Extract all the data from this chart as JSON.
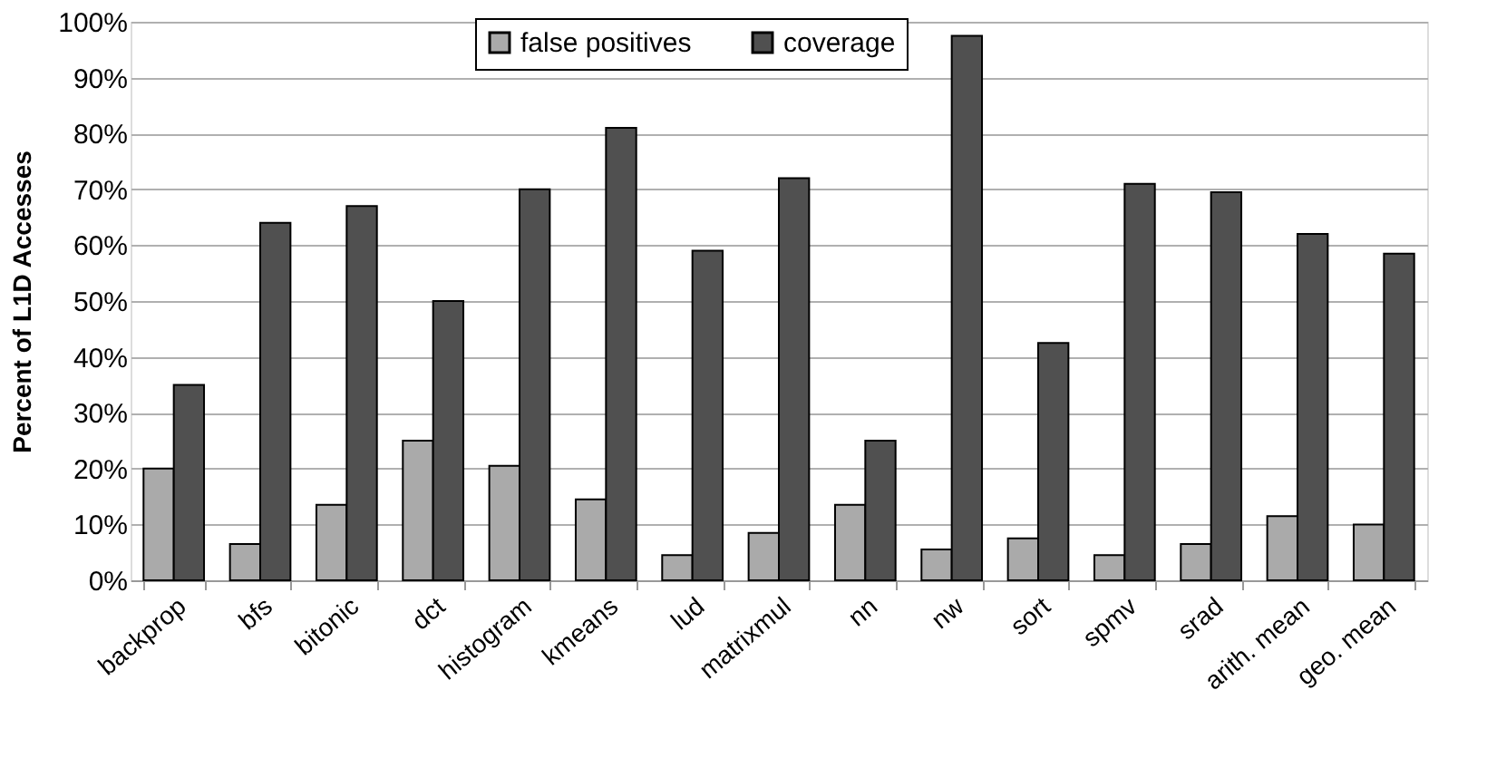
{
  "chart_data": {
    "type": "bar",
    "ylabel": "Percent of L1D Accesses",
    "categories": [
      "backprop",
      "bfs",
      "bitonic",
      "dct",
      "histogram",
      "kmeans",
      "lud",
      "matrixmul",
      "nn",
      "nw",
      "sort",
      "spmv",
      "srad",
      "arith. mean",
      "geo. mean"
    ],
    "series": [
      {
        "name": "false positives",
        "color": "#aaaaaa",
        "values": [
          20,
          6.5,
          13.5,
          25,
          20.5,
          14.5,
          4.5,
          8.5,
          13.5,
          5.5,
          7.5,
          4.5,
          6.5,
          11.5,
          10
        ]
      },
      {
        "name": "coverage",
        "color": "#505050",
        "values": [
          35,
          64,
          67,
          50,
          70,
          81,
          59,
          72,
          25,
          97.5,
          42.5,
          71,
          69.5,
          62,
          58.5
        ]
      }
    ],
    "ylim": [
      0,
      100
    ],
    "yticks": [
      {
        "value": 0,
        "label": "0%"
      },
      {
        "value": 10,
        "label": "10%"
      },
      {
        "value": 20,
        "label": "20%"
      },
      {
        "value": 30,
        "label": "30%"
      },
      {
        "value": 40,
        "label": "40%"
      },
      {
        "value": 50,
        "label": "50%"
      },
      {
        "value": 60,
        "label": "60%"
      },
      {
        "value": 70,
        "label": "70%"
      },
      {
        "value": 80,
        "label": "80%"
      },
      {
        "value": 90,
        "label": "90%"
      },
      {
        "value": 100,
        "label": "100%"
      }
    ],
    "grid": "y",
    "legend": "top"
  }
}
